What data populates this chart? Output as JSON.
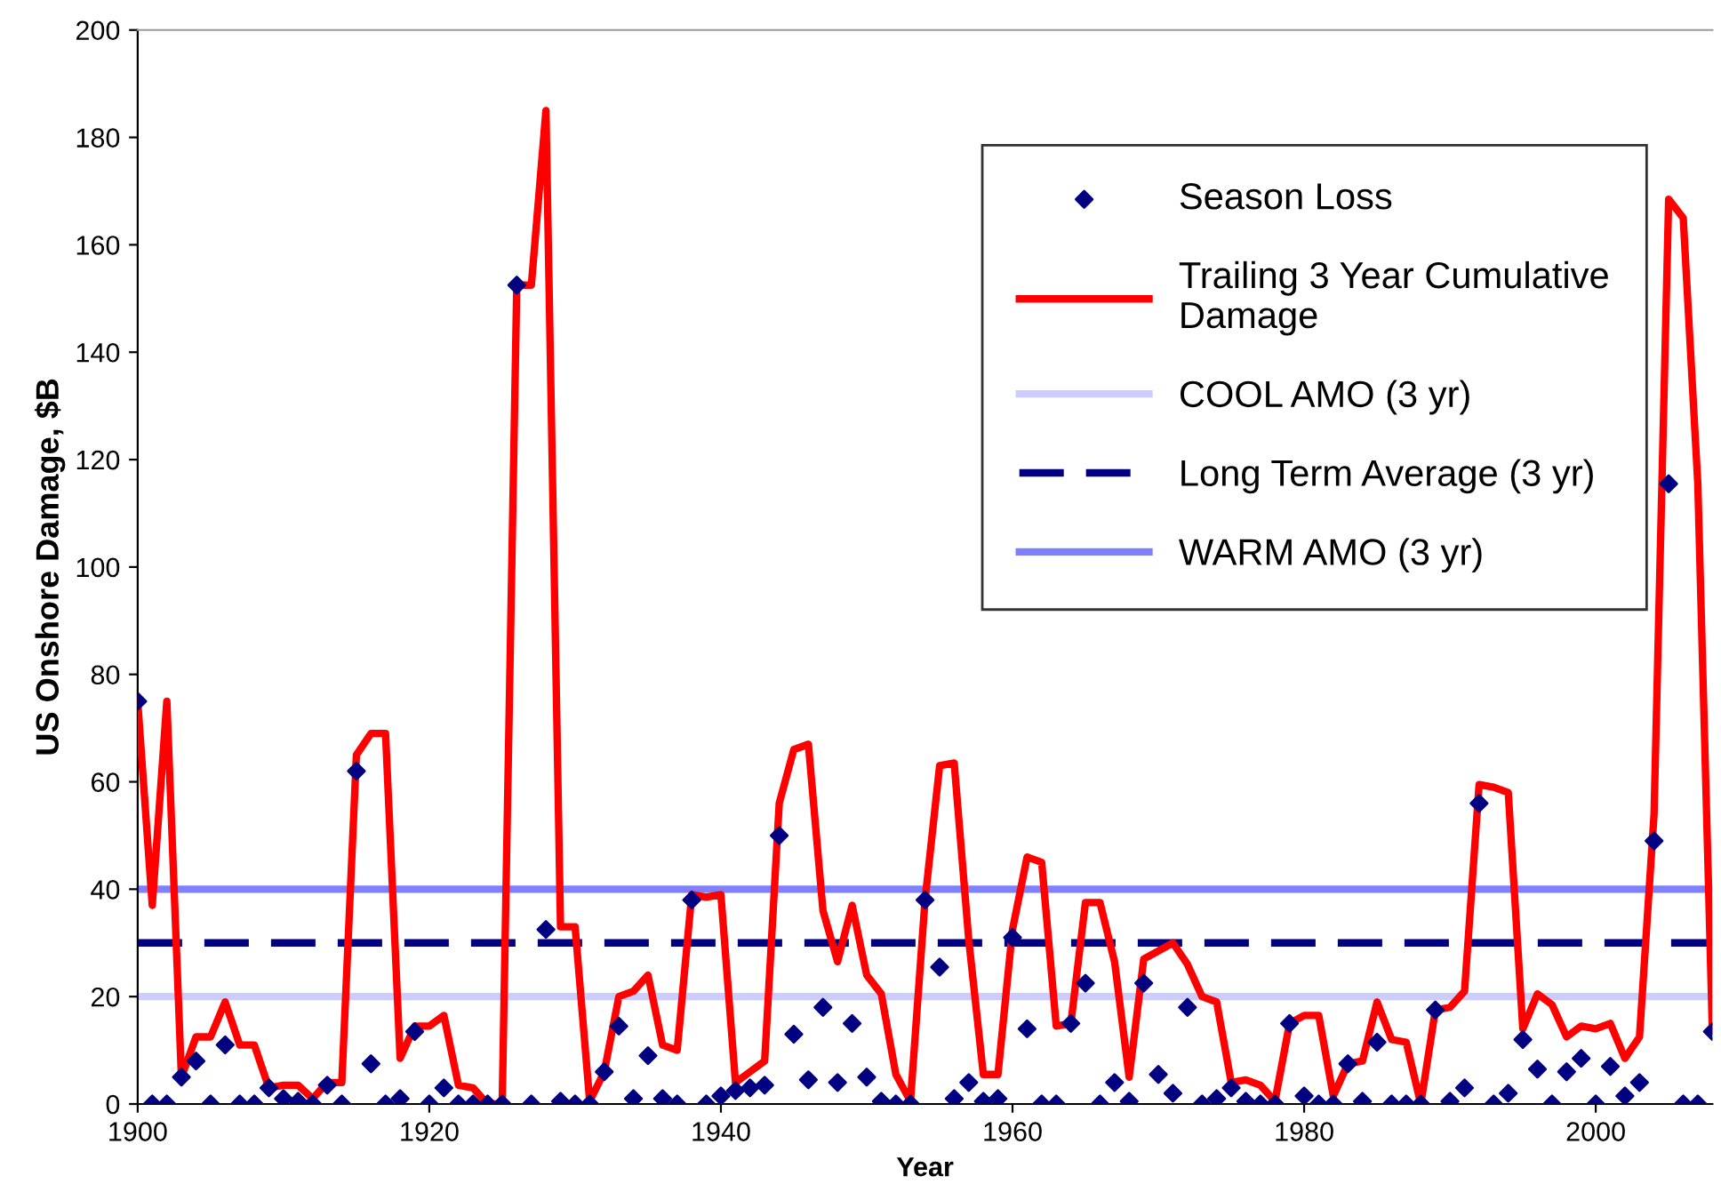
{
  "chart_data": {
    "type": "scatter",
    "xlabel": "Year",
    "ylabel": "US Onshore Damage, $B",
    "xlim": [
      1900,
      2008
    ],
    "xticks": [
      1900,
      1920,
      1940,
      1960,
      1980,
      2000
    ],
    "ylim": [
      0,
      200
    ],
    "yticks": [
      0,
      20,
      40,
      60,
      80,
      100,
      120,
      140,
      160,
      180,
      200
    ],
    "grid": false,
    "legend": "top right",
    "x": [
      1900,
      1901,
      1902,
      1903,
      1904,
      1905,
      1906,
      1907,
      1908,
      1909,
      1910,
      1911,
      1912,
      1913,
      1914,
      1915,
      1916,
      1917,
      1918,
      1919,
      1920,
      1921,
      1922,
      1923,
      1924,
      1925,
      1926,
      1927,
      1928,
      1929,
      1930,
      1931,
      1932,
      1933,
      1934,
      1935,
      1936,
      1937,
      1938,
      1939,
      1940,
      1941,
      1942,
      1943,
      1944,
      1945,
      1946,
      1947,
      1948,
      1949,
      1950,
      1951,
      1952,
      1953,
      1954,
      1955,
      1956,
      1957,
      1958,
      1959,
      1960,
      1961,
      1962,
      1963,
      1964,
      1965,
      1966,
      1967,
      1968,
      1969,
      1970,
      1971,
      1972,
      1973,
      1974,
      1975,
      1976,
      1977,
      1978,
      1979,
      1980,
      1981,
      1982,
      1983,
      1984,
      1985,
      1986,
      1987,
      1988,
      1989,
      1990,
      1991,
      1992,
      1993,
      1994,
      1995,
      1996,
      1997,
      1998,
      1999,
      2000,
      2001,
      2002,
      2003,
      2004,
      2005,
      2006,
      2007,
      2008
    ],
    "series": [
      {
        "name": "Season Loss",
        "marker": "diamond",
        "color": "#000080",
        "values": [
          75,
          0,
          0,
          5,
          8,
          0,
          11,
          0,
          0,
          3,
          1,
          0.5,
          0,
          3.5,
          0,
          62,
          7.5,
          0,
          1,
          13.5,
          0,
          3,
          0,
          0,
          0,
          0,
          152.5,
          0,
          32.5,
          0.5,
          0,
          0,
          6,
          14.5,
          1,
          9,
          1,
          0,
          38,
          0,
          1.5,
          2.5,
          3,
          3.5,
          50,
          13,
          4.5,
          18,
          4,
          15,
          5,
          0.5,
          0,
          0,
          38,
          25.5,
          1,
          4,
          0.5,
          1,
          31,
          14,
          0,
          0,
          15,
          22.5,
          0,
          4,
          0.5,
          22.5,
          5.5,
          2,
          18,
          0,
          1,
          3,
          0.5,
          0,
          0,
          15,
          1.5,
          0,
          0,
          7.5,
          0.5,
          11.5,
          0,
          0,
          0,
          17.5,
          0.5,
          3,
          56,
          0,
          2,
          12,
          6.5,
          0,
          6,
          8.5,
          0,
          7,
          1.5,
          4,
          49,
          115.5,
          0,
          0,
          13.5
        ]
      },
      {
        "name": "Trailing 3 Year Cumulative\nDamage",
        "type": "line",
        "marker": "none",
        "line_style": "solid",
        "color": "#ff0000",
        "values": [
          75,
          37,
          75,
          5,
          12.5,
          12.5,
          19,
          11,
          11,
          3,
          3.5,
          3.5,
          1,
          4,
          4,
          65,
          69,
          69,
          8.5,
          14.5,
          14.5,
          16.5,
          3.5,
          3,
          0,
          0,
          152.5,
          152.5,
          185,
          33,
          33,
          0.5,
          6,
          20,
          21,
          24,
          11,
          10,
          39,
          38.5,
          39,
          4,
          6,
          8,
          56,
          66,
          67,
          36,
          26.5,
          37,
          24,
          20.5,
          5.5,
          0.5,
          38,
          63,
          63.5,
          30.5,
          5.5,
          5.5,
          32.5,
          46,
          45,
          14.5,
          15,
          37.5,
          37.5,
          26.5,
          5,
          27,
          28.5,
          30,
          26,
          20,
          19,
          4,
          4.5,
          3.5,
          0.5,
          15,
          16.5,
          16.5,
          1.5,
          7.5,
          8,
          19,
          12,
          11.5,
          0,
          17.5,
          18,
          21,
          59.5,
          59,
          58,
          14,
          20.5,
          18.5,
          12.5,
          14.5,
          14,
          15,
          8.5,
          12.5,
          54,
          168.5,
          165,
          115.5,
          13.5
        ]
      }
    ],
    "ref_lines": [
      {
        "axis": "y",
        "value": 20,
        "label": "COOL AMO (3 yr)",
        "color": "#ccccff",
        "line_style": "solid"
      },
      {
        "axis": "y",
        "value": 30,
        "label": "Long Term Average (3 yr)",
        "color": "#000080",
        "line_style": "dashed"
      },
      {
        "axis": "y",
        "value": 40,
        "label": "WARM AMO (3 yr)",
        "color": "#8080ff",
        "line_style": "solid"
      }
    ]
  }
}
